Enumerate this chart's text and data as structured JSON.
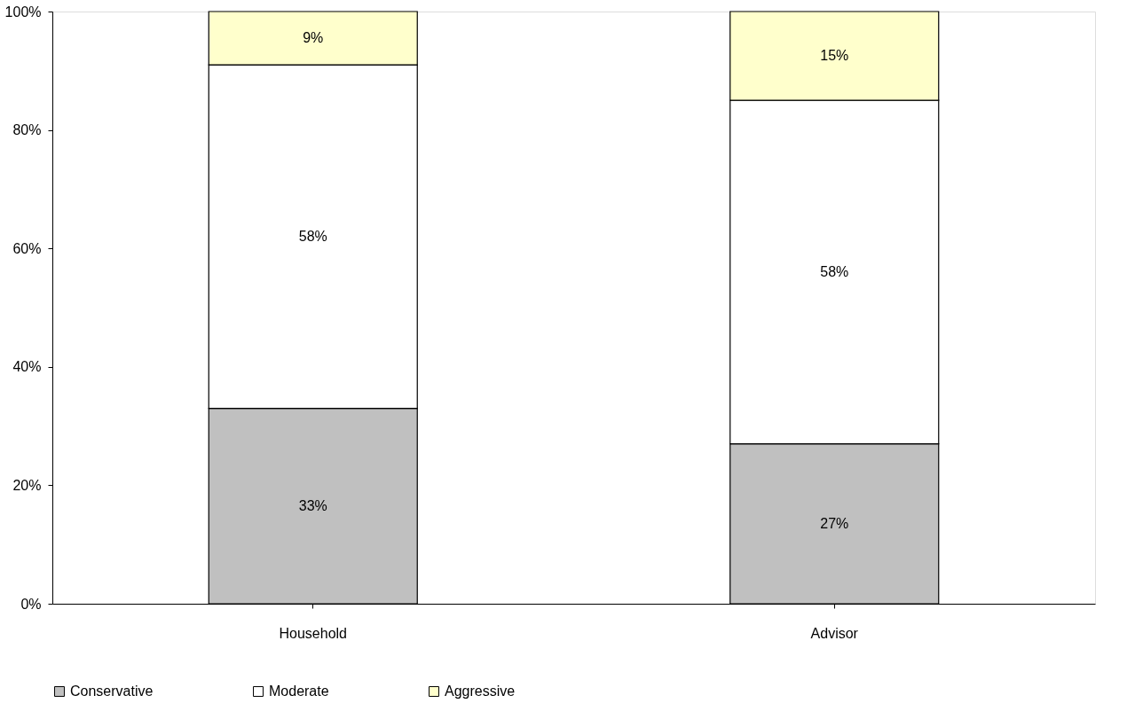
{
  "chart_data": {
    "type": "bar",
    "stacked": true,
    "categories": [
      "Household",
      "Advisor"
    ],
    "series": [
      {
        "name": "Conservative",
        "color": "#c0c0c0",
        "values": [
          33,
          27
        ],
        "value_labels": [
          "33%",
          "27%"
        ]
      },
      {
        "name": "Moderate",
        "color": "#ffffff",
        "values": [
          58,
          58
        ],
        "value_labels": [
          "58%",
          "58%"
        ]
      },
      {
        "name": "Aggressive",
        "color": "#ffffcc",
        "values": [
          9,
          15
        ],
        "value_labels": [
          "9%",
          "15%"
        ]
      }
    ],
    "ylim": [
      0,
      100
    ],
    "yticks": [
      {
        "value": 0,
        "label": "0%"
      },
      {
        "value": 20,
        "label": "20%"
      },
      {
        "value": 40,
        "label": "40%"
      },
      {
        "value": 60,
        "label": "60%"
      },
      {
        "value": 80,
        "label": "80%"
      },
      {
        "value": 100,
        "label": "100%"
      }
    ],
    "grid": false,
    "legend": "bottom"
  }
}
